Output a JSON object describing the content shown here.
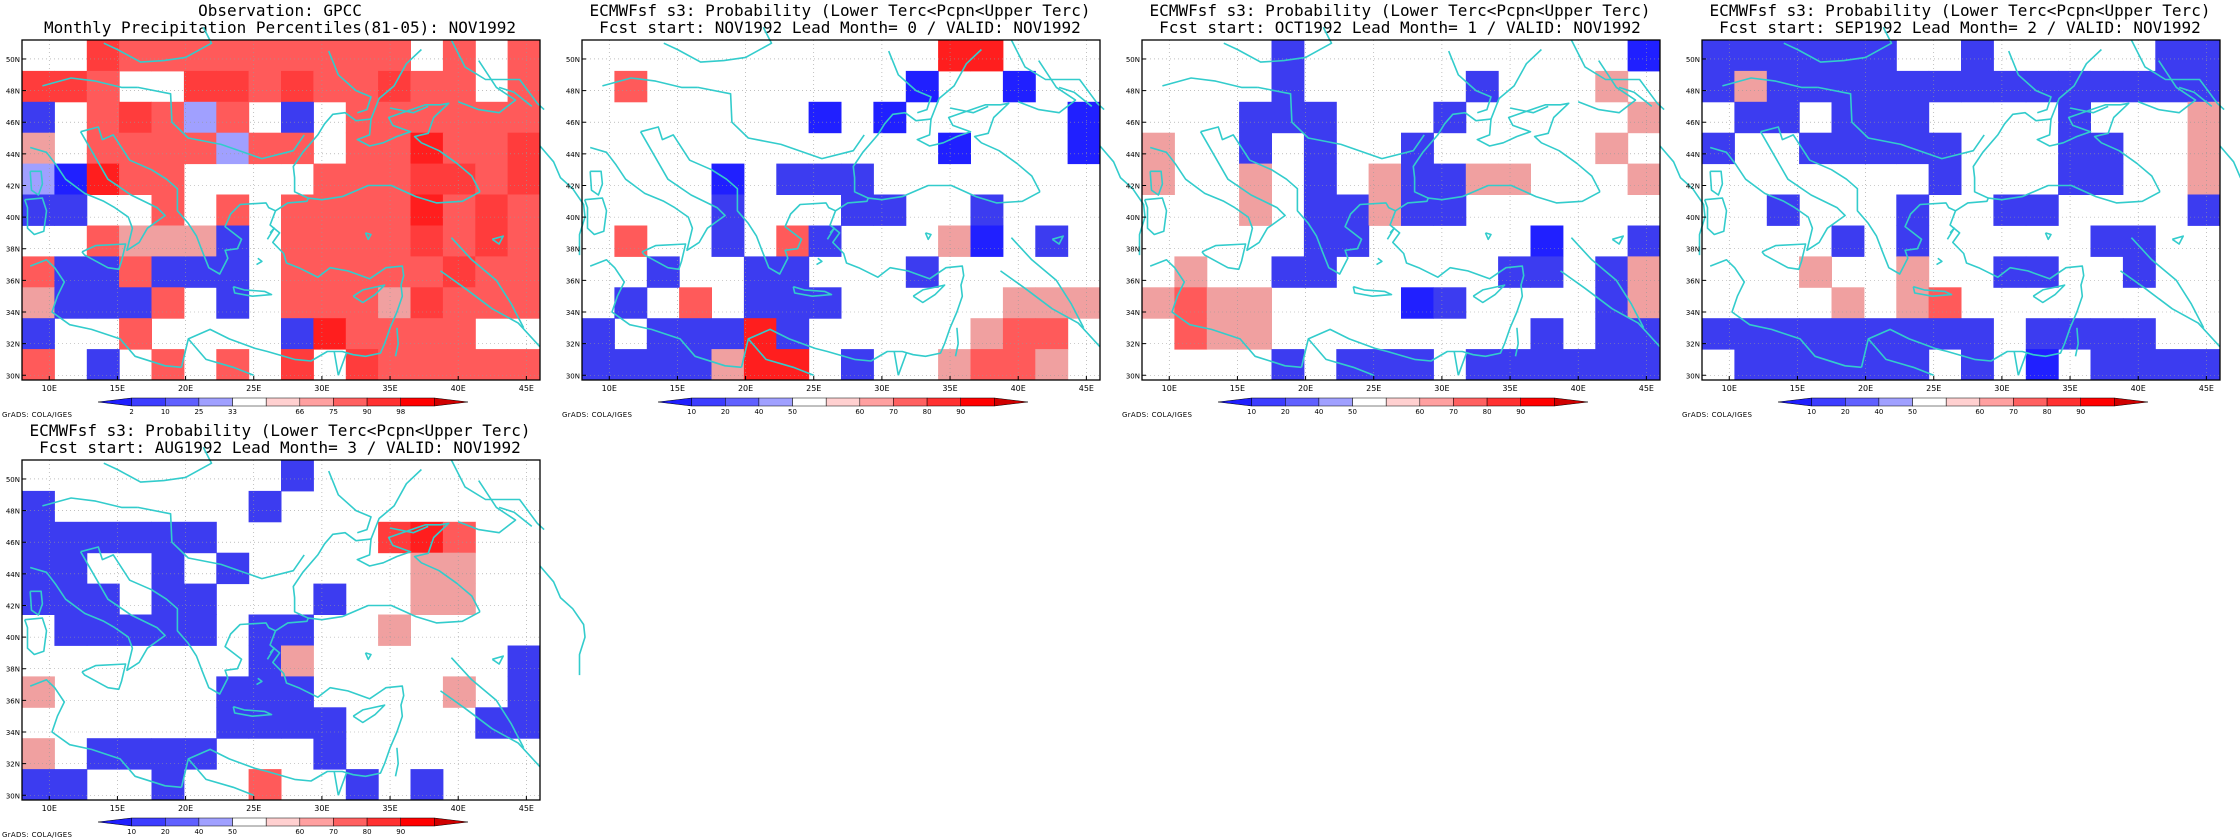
{
  "panels": [
    {
      "id": "obs",
      "title_line1": "Observation: GPCC",
      "title_line2": "Monthly Precipitation Percentiles(81-05): NOV1992",
      "colorbar": {
        "labels": [
          "2",
          "10",
          "25",
          "33",
          "66",
          "75",
          "90",
          "98"
        ]
      },
      "credit": "GrADS: COLA/IGES",
      "grid": [
        "10fddddddddd1d1d",
        "ffd00ffdfddfdd0d",
        "b0dfd9d0b0dddddd",
        "c0dddd9dd0ddeddf",
        "9aedd0000dddffdf",
        "bb00d0d0ddddedfd",
        "00dcccb0ddddfdfd",
        "dbbdbbb0dddddfdd",
        "cbbbd0b0dddcfddd",
        "b00d0000bedddd00",
        "d0b0d0d0f0fddddd"
      ]
    },
    {
      "id": "lead0",
      "title_line1": "ECMWFsf s3: Probability (Lower Terc<Pcpn<Upper Terc)",
      "title_line2": "Fcst start: NOV1992  Lead Month= 0 / VALID: NOV1992",
      "colorbar": {
        "labels": [
          "10",
          "20",
          "40",
          "50",
          "60",
          "70",
          "80",
          "90"
        ]
      },
      "credit": "GrADS: COLA/IGES",
      "grid": [
        "00004000405ee000",
        "0d00404000a00a00",
        "0000004a0a00000a",
        "40000000000a000a",
        "0000a0bbb0000000",
        "0000b000bb00b000",
        "0d00b0db000ca0b0",
        "00b00bb000b00000",
        "0b0d0bbb00000ccc",
        "b0bbbeb00000cdd0",
        "bbbbcee0b00cddc0"
      ]
    },
    {
      "id": "lead1",
      "title_line1": "ECMWFsf s3: Probability (Lower Terc<Pcpn<Upper Terc)",
      "title_line2": "Fcst start: OCT1992  Lead Month= 1 / VALID: NOV1992",
      "colorbar": {
        "labels": [
          "10",
          "20",
          "40",
          "50",
          "60",
          "70",
          "80",
          "90"
        ]
      },
      "credit": "GrADS: COLA/IGES",
      "grid": [
        "0000b0000000040a",
        "0000b00000b004c0",
        "000bbb000b00000c",
        "c00b0b00b00000c0",
        "c00c0b0cbbcc000c",
        "000c0bbcbb000000",
        "00000bb00000a00b",
        "0c00bb00000bb0bc",
        "cdcc0000ab0000bc",
        "0dcc00000000b0bb",
        "0000b0bbb0bbbbbb"
      ]
    },
    {
      "id": "lead2",
      "title_line1": "ECMWFsf s3: Probability (Lower Terc<Pcpn<Upper Terc)",
      "title_line2": "Fcst start: SEP1992  Lead Month= 2 / VALID: NOV1992",
      "colorbar": {
        "labels": [
          "10",
          "20",
          "40",
          "50",
          "60",
          "70",
          "80",
          "90"
        ]
      },
      "credit": "GrADS: COLA/IGES",
      "grid": [
        "bbbbbb00b00000bb",
        "bcbbbbbbbbbbbbbb",
        "0bb0bbb0000b000c",
        "b00bbbbb000bb00c",
        "0000000b000bb00c",
        "00b000b00bb0000b",
        "0000b0b00000bb00",
        "000c00c00bb00b00",
        "0000c0cd00000000",
        "bbbbbbbbb0bbbb00",
        "0bbbbbb0b0a0bbbb"
      ]
    },
    {
      "id": "lead3",
      "title_line1": "ECMWFsf s3: Probability (Lower Terc<Pcpn<Upper Terc)",
      "title_line2": "Fcst start: AUG1992  Lead Month= 3 / VALID: NOV1992",
      "colorbar": {
        "labels": [
          "10",
          "20",
          "40",
          "50",
          "60",
          "70",
          "80",
          "90"
        ]
      },
      "credit": "GrADS: COLA/IGES",
      "grid": [
        "00000000b0000000",
        "b000000b00000000",
        "bbbbbb00000fed00",
        "bb00b0b00000cc00",
        "bbb0bb000b00cc00",
        "0bbbbb0bb00c0000",
        "0000000bc000000b",
        "c00000bbb0000c0b",
        "000000bbbb0000bb",
        "c0bbbb000b000000",
        "bb00b00d00b0b000"
      ]
    }
  ],
  "palette": {
    "0": "#ffffff",
    "9": "#a0a0ff",
    "a": "#2020ff",
    "b": "#3c3cf0",
    "c": "#f0a0a0",
    "d": "#ff5a5a",
    "e": "#ff1e1e",
    "f": "#ff3c3c"
  },
  "axes": {
    "x_ticks": [
      "10E",
      "15E",
      "20E",
      "25E",
      "30E",
      "35E",
      "40E",
      "45E"
    ],
    "y_ticks": [
      "30N",
      "32N",
      "34N",
      "36N",
      "38N",
      "40N",
      "42N",
      "44N",
      "46N",
      "48N",
      "50N"
    ],
    "lon_range": [
      8,
      46
    ],
    "lat_range": [
      29.7,
      51.2
    ]
  },
  "colorbar_colors": [
    "#1e1eff",
    "#3c3cff",
    "#6060ff",
    "#a0a0ff",
    "#ffffff",
    "#ffd0d0",
    "#ffa0a0",
    "#ff6060",
    "#ff3030",
    "#ff0000",
    "#d00000"
  ],
  "coast_color": "#33cccc"
}
